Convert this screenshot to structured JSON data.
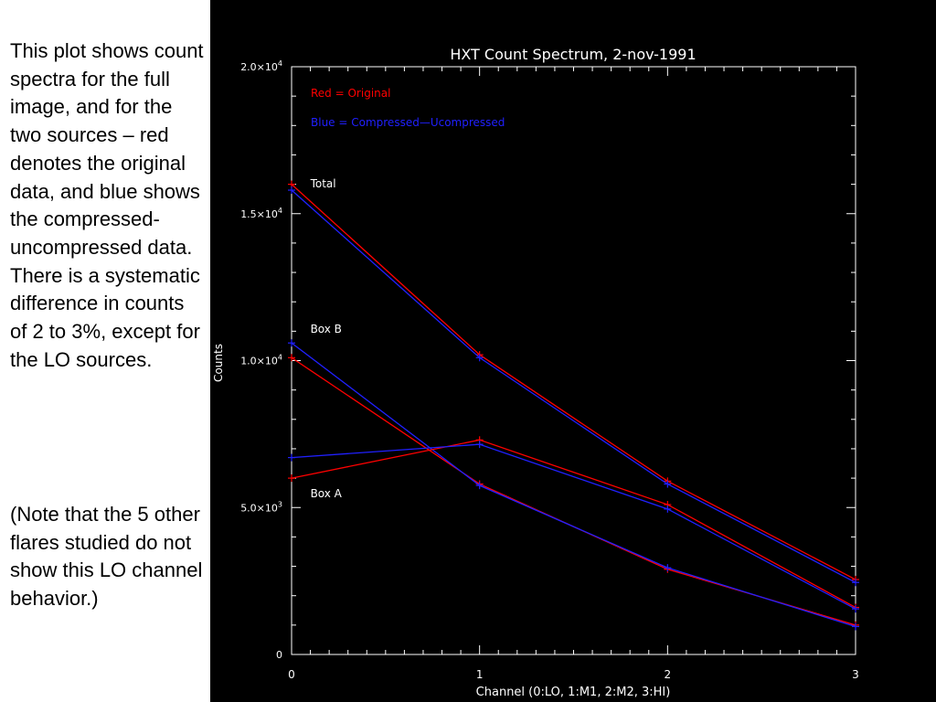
{
  "description": {
    "paragraph1": "This plot shows count spectra for the full image, and for the two sources – red denotes the original data, and blue shows the compressed-uncompressed data. There is a systematic difference in counts of 2 to 3%, except for the LO sources.",
    "paragraph2": "(Note that the 5 other flares studied do not show this LO channel behavior.)"
  },
  "chart_data": {
    "type": "line",
    "title": "HXT Count Spectrum, 2-nov-1991",
    "xlabel": "Channel (0:LO, 1:M1, 2:M2, 3:HI)",
    "ylabel": "Counts",
    "xlim": [
      0,
      3
    ],
    "ylim": [
      0,
      20000
    ],
    "x_ticks": [
      {
        "value": 0,
        "label": "0"
      },
      {
        "value": 1,
        "label": "1"
      },
      {
        "value": 2,
        "label": "2"
      },
      {
        "value": 3,
        "label": "3"
      }
    ],
    "y_ticks": [
      {
        "value": 0,
        "label": "0",
        "exp": ""
      },
      {
        "value": 5000,
        "label": "5.0×10",
        "exp": "3"
      },
      {
        "value": 10000,
        "label": "1.0×10",
        "exp": "4"
      },
      {
        "value": 15000,
        "label": "1.5×10",
        "exp": "4"
      },
      {
        "value": 20000,
        "label": "2.0×10",
        "exp": "4"
      }
    ],
    "x": [
      0,
      1,
      2,
      3
    ],
    "legend": [
      {
        "text": "Red = Original",
        "color": "#ff0000"
      },
      {
        "text": "Blue = Compressed—Ucompressed",
        "color": "#2020ff"
      }
    ],
    "annotations": [
      {
        "text": "Total",
        "x": 0.1,
        "y": 15900
      },
      {
        "text": "Box B",
        "x": 0.1,
        "y": 10950
      },
      {
        "text": "Box A",
        "x": 0.1,
        "y": 5350
      }
    ],
    "series": [
      {
        "group": "Total",
        "kind": "original",
        "color": "#ff0000",
        "values": [
          16000,
          10200,
          5900,
          2550
        ]
      },
      {
        "group": "Total",
        "kind": "compressed",
        "color": "#2020ff",
        "values": [
          15800,
          10100,
          5800,
          2450
        ]
      },
      {
        "group": "Box B",
        "kind": "original",
        "color": "#ff0000",
        "values": [
          10100,
          5800,
          2900,
          1000
        ]
      },
      {
        "group": "Box B",
        "kind": "compressed",
        "color": "#2020ff",
        "values": [
          10600,
          5750,
          2950,
          950
        ]
      },
      {
        "group": "Box A",
        "kind": "original",
        "color": "#ff0000",
        "values": [
          6000,
          7300,
          5100,
          1600
        ]
      },
      {
        "group": "Box A",
        "kind": "compressed",
        "color": "#2020ff",
        "values": [
          6700,
          7150,
          4950,
          1550
        ]
      }
    ]
  }
}
